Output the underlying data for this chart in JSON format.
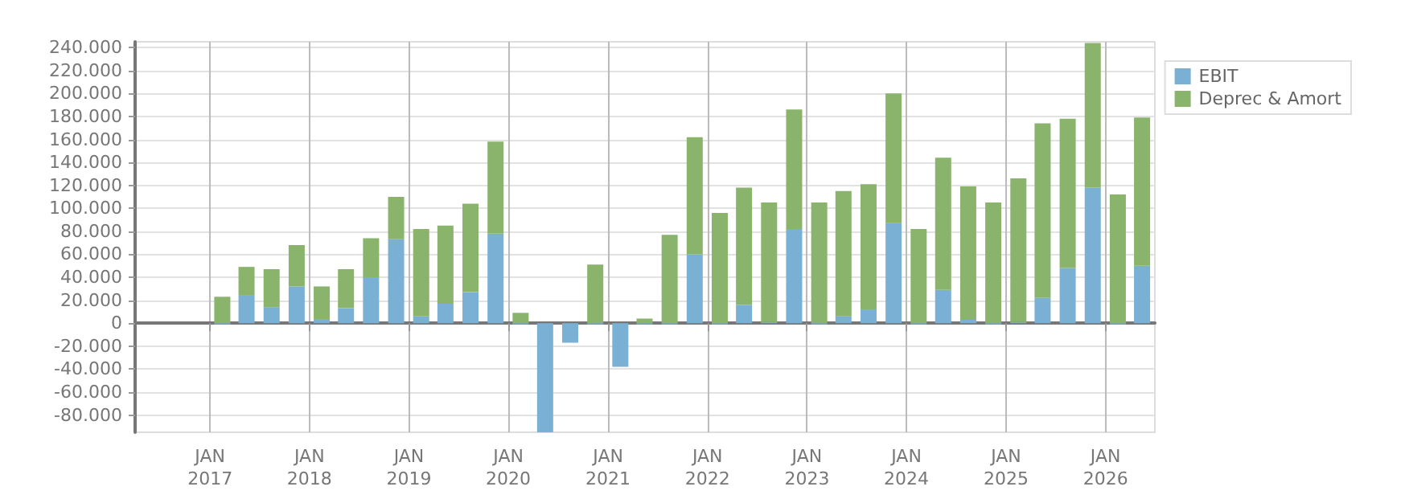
{
  "chart_data": {
    "type": "bar",
    "stacked": true,
    "x": [
      "2017-02-15",
      "2017-05-15",
      "2017-08-15",
      "2017-11-15",
      "2018-02-15",
      "2018-05-15",
      "2018-08-15",
      "2018-11-15",
      "2019-02-15",
      "2019-05-15",
      "2019-08-15",
      "2019-11-15",
      "2020-02-15",
      "2020-05-15",
      "2020-08-15",
      "2020-11-15",
      "2021-02-15",
      "2021-05-15",
      "2021-08-15",
      "2021-11-15",
      "2022-02-15",
      "2022-05-15",
      "2022-08-15",
      "2022-11-15",
      "2023-02-15",
      "2023-05-15",
      "2023-08-15",
      "2023-11-15",
      "2024-02-15",
      "2024-05-15",
      "2024-08-15",
      "2024-11-15",
      "2025-02-15",
      "2025-05-15",
      "2025-08-15",
      "2025-11-15",
      "2026-02-15",
      "2026-05-15"
    ],
    "series": [
      {
        "name": "EBIT",
        "color": "#7ab0d4",
        "values": [
          -1000,
          24000,
          14000,
          32000,
          3000,
          13000,
          40000,
          73000,
          6000,
          17000,
          27000,
          78000,
          -1000,
          -95000,
          -17000,
          -1000,
          -38000,
          -1000,
          -1000,
          60000,
          -1000,
          16000,
          1000,
          82000,
          -1000,
          6000,
          12000,
          87000,
          -1000,
          29000,
          3000,
          -1000,
          1000,
          22000,
          48000,
          118000,
          -1000,
          50000
        ]
      },
      {
        "name": "Deprec & Amort",
        "color": "#8ab36c",
        "values": [
          23000,
          25000,
          33000,
          36000,
          29000,
          34000,
          34000,
          37000,
          76000,
          68000,
          77000,
          80000,
          9000,
          0,
          0,
          51000,
          0,
          4000,
          77000,
          102000,
          96000,
          102000,
          104000,
          104000,
          105000,
          109000,
          109000,
          113000,
          82000,
          115000,
          116000,
          105000,
          125000,
          152000,
          130000,
          126000,
          112000,
          129000
        ]
      }
    ],
    "xlim": [
      "2016-04-01",
      "2026-07-01"
    ],
    "xticks": [
      {
        "value": "2017-01-01",
        "label": "JAN\n2017"
      },
      {
        "value": "2018-01-01",
        "label": "JAN\n2018"
      },
      {
        "value": "2019-01-01",
        "label": "JAN\n2019"
      },
      {
        "value": "2020-01-01",
        "label": "JAN\n2020"
      },
      {
        "value": "2021-01-01",
        "label": "JAN\n2021"
      },
      {
        "value": "2022-01-01",
        "label": "JAN\n2022"
      },
      {
        "value": "2023-01-01",
        "label": "JAN\n2023"
      },
      {
        "value": "2024-01-01",
        "label": "JAN\n2024"
      },
      {
        "value": "2025-01-01",
        "label": "JAN\n2025"
      },
      {
        "value": "2026-01-01",
        "label": "JAN\n2026"
      }
    ],
    "ylim": [
      -95000,
      245000
    ],
    "yticks": [
      {
        "value": -80000,
        "label": "-80.000"
      },
      {
        "value": -60000,
        "label": "-60.000"
      },
      {
        "value": -40000,
        "label": "-40.000"
      },
      {
        "value": -20000,
        "label": "-20.000"
      },
      0,
      {
        "value": 20000,
        "label": "20.000"
      },
      {
        "value": 40000,
        "label": "40.000"
      },
      {
        "value": 60000,
        "label": "60.000"
      },
      {
        "value": 80000,
        "label": "80.000"
      },
      {
        "value": 100000,
        "label": "100.000"
      },
      {
        "value": 120000,
        "label": "120.000"
      },
      {
        "value": 140000,
        "label": "140.000"
      },
      {
        "value": 160000,
        "label": "160.000"
      },
      {
        "value": 180000,
        "label": "180.000"
      },
      {
        "value": 200000,
        "label": "200.000"
      },
      {
        "value": 220000,
        "label": "220.000"
      },
      {
        "value": 240000,
        "label": "240.000"
      }
    ],
    "grid": true,
    "legend": "top right"
  }
}
